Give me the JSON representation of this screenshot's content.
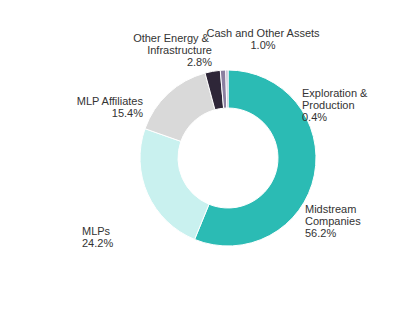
{
  "chart_data": {
    "type": "donut",
    "categories": [
      "Midstream Companies",
      "MLPs",
      "MLP Affiliates",
      "Other Energy & Infrastructure",
      "Cash and Other Assets",
      "Exploration & Production"
    ],
    "values": [
      56.2,
      24.2,
      15.4,
      2.8,
      1.0,
      0.4
    ],
    "value_labels": [
      "56.2%",
      "24.2%",
      "15.4%",
      "2.8%",
      "1.0%",
      "0.4%"
    ],
    "colors": [
      "#2bbbb4",
      "#c9f1ef",
      "#d9d9d9",
      "#2e2638",
      "#8a7fa0",
      "#b8aecb"
    ],
    "data_labels": true
  }
}
